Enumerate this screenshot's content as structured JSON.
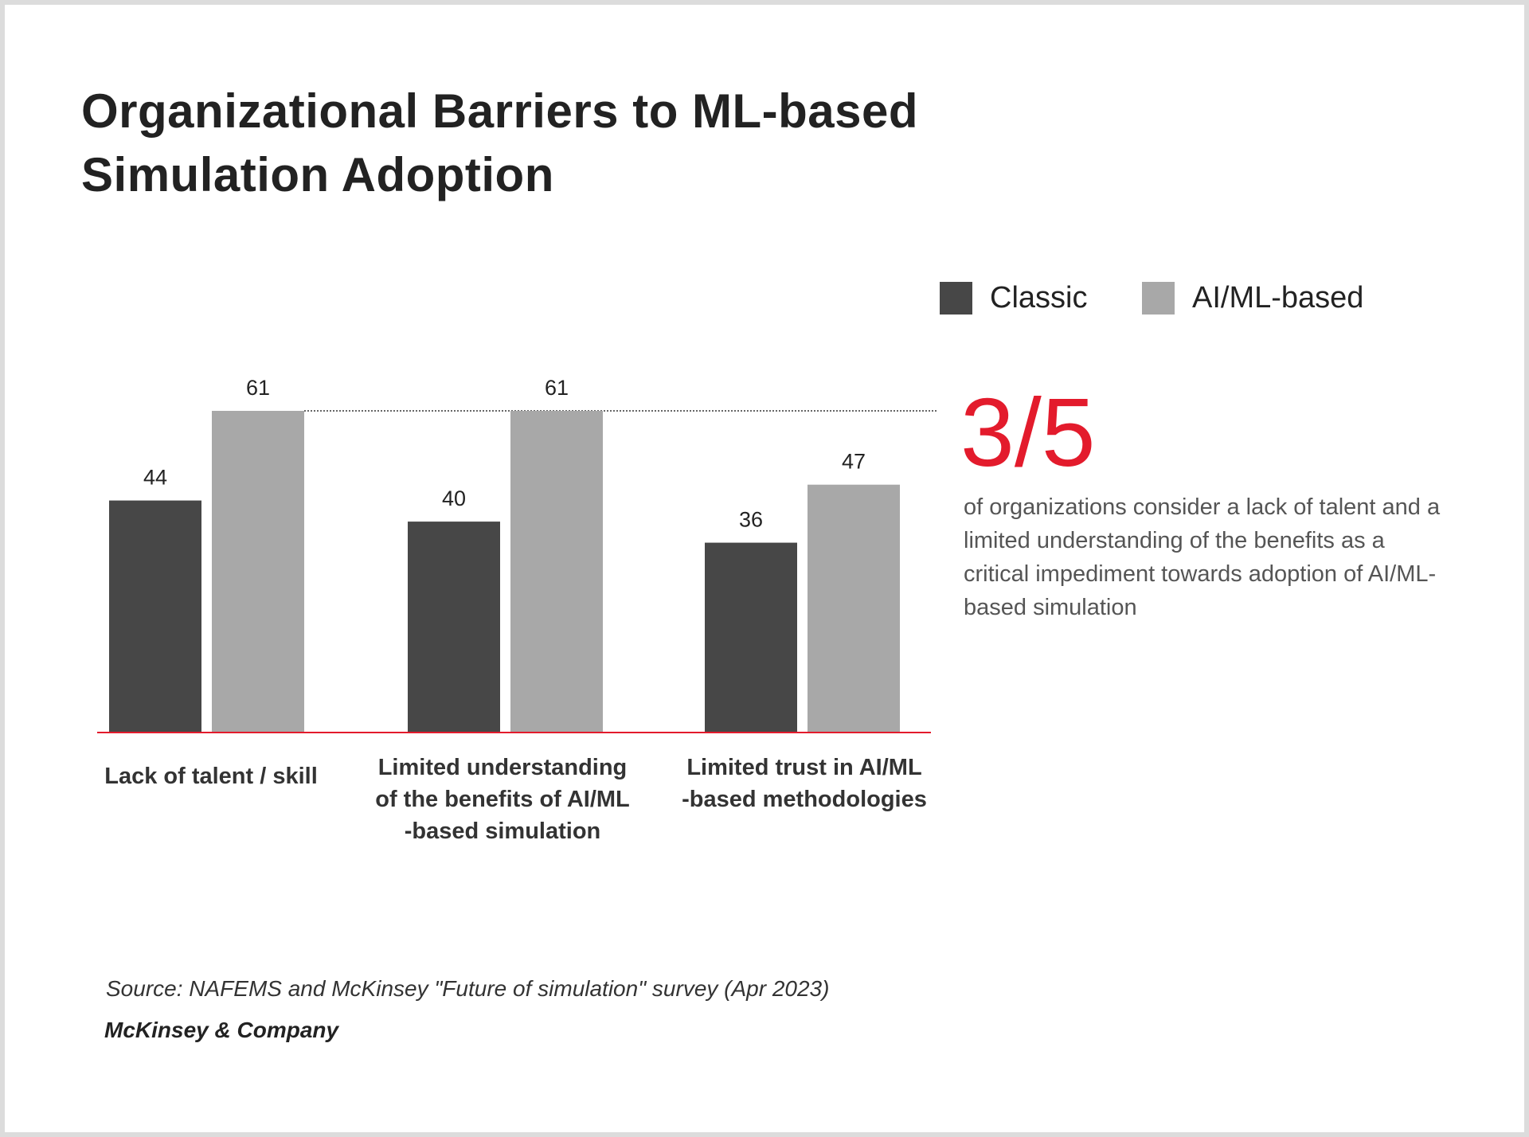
{
  "title_line1": "Organizational Barriers to ML-based",
  "title_line2": "Simulation Adoption",
  "legend": [
    {
      "label": "Classic",
      "color": "#474747"
    },
    {
      "label": "AI/ML-based",
      "color": "#a8a8a8"
    }
  ],
  "chart_data": {
    "type": "bar",
    "categories": [
      "Lack of talent / skill",
      "Limited understanding\nof the benefits of AI/ML\n-based simulation",
      "Limited trust in AI/ML\n-based methodologies"
    ],
    "series": [
      {
        "name": "Classic",
        "values": [
          44,
          40,
          36
        ],
        "color": "#474747"
      },
      {
        "name": "AI/ML-based",
        "values": [
          61,
          61,
          47
        ],
        "color": "#a8a8a8"
      }
    ],
    "ylim": [
      0,
      61
    ],
    "reference_line": 61,
    "baseline_color": "#e31b2c",
    "grid": false,
    "legend_position": "top-right"
  },
  "highlight": {
    "stat": "3/5",
    "color": "#e31b2c",
    "text": "of organizations consider a lack of talent and a limited understanding of the benefits as a critical impediment towards adoption of AI/ML-based simulation"
  },
  "source": "Source: NAFEMS and McKinsey \"Future of simulation\" survey (Apr 2023)",
  "brand": "McKinsey & Company"
}
